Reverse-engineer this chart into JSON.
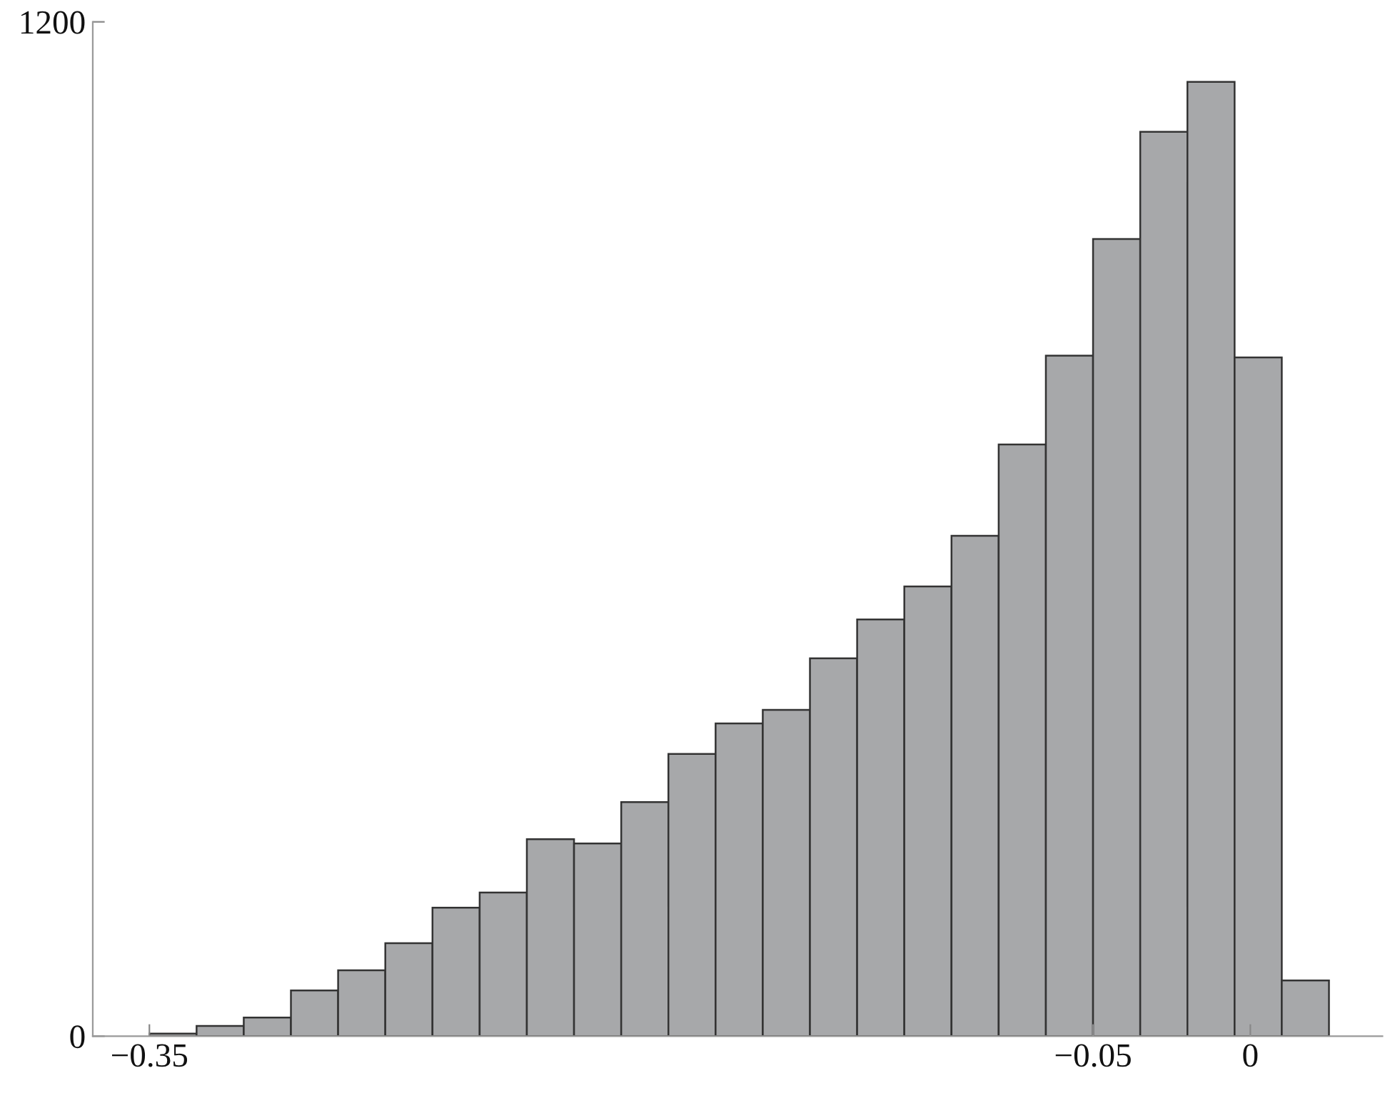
{
  "chart_data": {
    "type": "histogram",
    "bins": [
      -0.35,
      -0.335,
      -0.32,
      -0.305,
      -0.29,
      -0.275,
      -0.26,
      -0.245,
      -0.23,
      -0.215,
      -0.2,
      -0.185,
      -0.17,
      -0.155,
      -0.14,
      -0.125,
      -0.11,
      -0.095,
      -0.08,
      -0.065,
      -0.05,
      -0.035,
      -0.02,
      -0.005,
      0.01,
      0.025
    ],
    "values": [
      3,
      12,
      22,
      54,
      78,
      110,
      152,
      170,
      233,
      228,
      277,
      334,
      370,
      386,
      447,
      493,
      532,
      592,
      700,
      805,
      943,
      1070,
      1129,
      803,
      66
    ],
    "color": "#a7a8aa",
    "xlim": [
      -0.368,
      0.042
    ],
    "xticks": [
      {
        "value": -0.35,
        "label": "−0.35"
      },
      {
        "value": -0.05,
        "label": "−0.05"
      },
      0
    ],
    "ylim": [
      0,
      1200
    ],
    "yticks": [
      0,
      1200
    ],
    "grid": false
  }
}
